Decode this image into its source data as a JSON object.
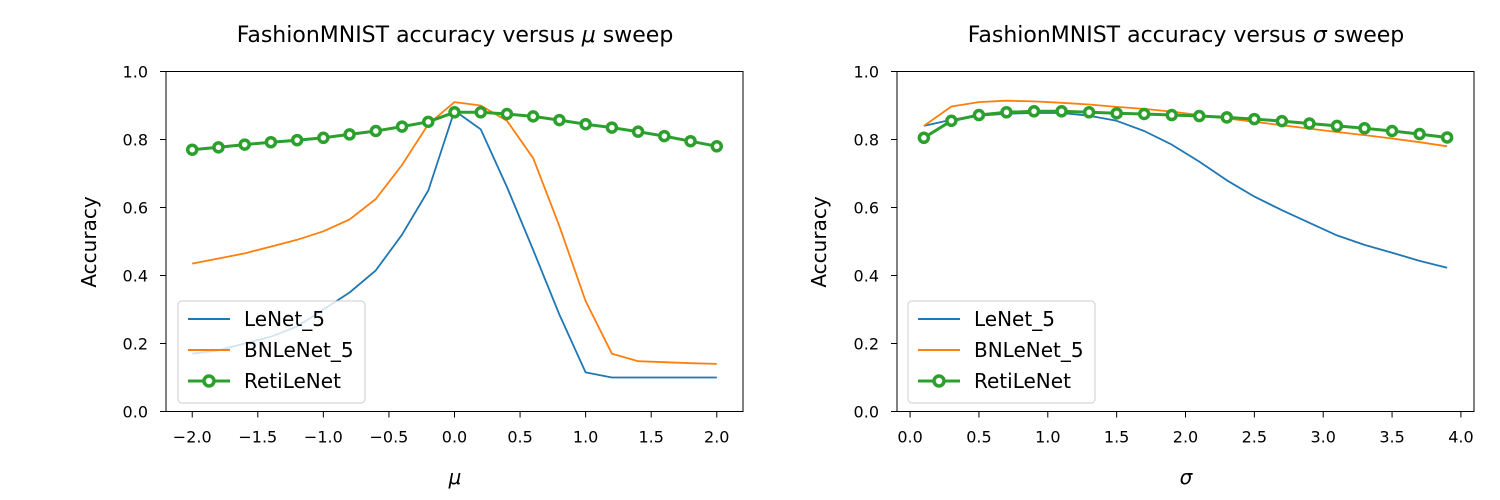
{
  "chart_data": [
    {
      "type": "line",
      "title_prefix": "FashionMNIST accuracy versus ",
      "title_symbol": "μ",
      "title_suffix": " sweep",
      "xlabel": "μ",
      "ylabel": "Accuracy",
      "xlim": [
        -2.2,
        2.2
      ],
      "ylim": [
        0.0,
        1.0
      ],
      "xticks": [
        -2.0,
        -1.5,
        -1.0,
        -0.5,
        0.0,
        0.5,
        1.0,
        1.5,
        2.0
      ],
      "xtick_labels": [
        "−2.0",
        "−1.5",
        "−1.0",
        "−0.5",
        "0.0",
        "0.5",
        "1.0",
        "1.5",
        "2.0"
      ],
      "yticks": [
        0.0,
        0.2,
        0.4,
        0.6,
        0.8,
        1.0
      ],
      "ytick_labels": [
        "0.0",
        "0.2",
        "0.4",
        "0.6",
        "0.8",
        "1.0"
      ],
      "grid": false,
      "legend_position": "lower-left",
      "x": [
        -2.0,
        -1.8,
        -1.6,
        -1.4,
        -1.2,
        -1.0,
        -0.8,
        -0.6,
        -0.4,
        -0.2,
        0.0,
        0.2,
        0.4,
        0.6,
        0.8,
        1.0,
        1.2,
        1.4,
        1.6,
        1.8,
        2.0
      ],
      "series": [
        {
          "name": "LeNet_5",
          "color": "#1f77b4",
          "marker": false,
          "values": [
            0.17,
            0.18,
            0.2,
            0.22,
            0.25,
            0.3,
            0.35,
            0.415,
            0.52,
            0.65,
            0.885,
            0.83,
            0.66,
            0.475,
            0.285,
            0.115,
            0.1,
            0.1,
            0.1,
            0.1,
            0.1
          ]
        },
        {
          "name": "BNLeNet_5",
          "color": "#ff7f0e",
          "marker": false,
          "values": [
            0.435,
            0.45,
            0.465,
            0.485,
            0.505,
            0.53,
            0.565,
            0.625,
            0.725,
            0.845,
            0.91,
            0.9,
            0.855,
            0.745,
            0.545,
            0.325,
            0.17,
            0.148,
            0.145,
            0.142,
            0.14
          ]
        },
        {
          "name": "RetiLeNet",
          "color": "#2ca02c",
          "marker": true,
          "values": [
            0.77,
            0.777,
            0.785,
            0.792,
            0.798,
            0.805,
            0.815,
            0.825,
            0.838,
            0.852,
            0.88,
            0.88,
            0.875,
            0.868,
            0.857,
            0.845,
            0.835,
            0.823,
            0.81,
            0.795,
            0.78
          ]
        }
      ]
    },
    {
      "type": "line",
      "title_prefix": "FashionMNIST accuracy versus ",
      "title_symbol": "σ",
      "title_suffix": " sweep",
      "xlabel": "σ",
      "ylabel": "Accuracy",
      "xlim": [
        -0.095,
        4.095
      ],
      "ylim": [
        0.0,
        1.0
      ],
      "xticks": [
        0.0,
        0.5,
        1.0,
        1.5,
        2.0,
        2.5,
        3.0,
        3.5,
        4.0
      ],
      "xtick_labels": [
        "0.0",
        "0.5",
        "1.0",
        "1.5",
        "2.0",
        "2.5",
        "3.0",
        "3.5",
        "4.0"
      ],
      "yticks": [
        0.0,
        0.2,
        0.4,
        0.6,
        0.8,
        1.0
      ],
      "ytick_labels": [
        "0.0",
        "0.2",
        "0.4",
        "0.6",
        "0.8",
        "1.0"
      ],
      "grid": false,
      "legend_position": "lower-left",
      "x": [
        0.1,
        0.3,
        0.5,
        0.7,
        0.9,
        1.1,
        1.3,
        1.5,
        1.7,
        1.9,
        2.1,
        2.3,
        2.5,
        2.7,
        2.9,
        3.1,
        3.3,
        3.5,
        3.7,
        3.9
      ],
      "series": [
        {
          "name": "LeNet_5",
          "color": "#1f77b4",
          "marker": false,
          "values": [
            0.84,
            0.858,
            0.87,
            0.876,
            0.878,
            0.878,
            0.87,
            0.855,
            0.825,
            0.785,
            0.735,
            0.68,
            0.632,
            0.592,
            0.555,
            0.518,
            0.49,
            0.467,
            0.443,
            0.423
          ]
        },
        {
          "name": "BNLeNet_5",
          "color": "#ff7f0e",
          "marker": false,
          "values": [
            0.84,
            0.897,
            0.91,
            0.914,
            0.912,
            0.908,
            0.903,
            0.896,
            0.89,
            0.882,
            0.872,
            0.862,
            0.852,
            0.842,
            0.832,
            0.822,
            0.813,
            0.803,
            0.792,
            0.78
          ]
        },
        {
          "name": "RetiLeNet",
          "color": "#2ca02c",
          "marker": true,
          "values": [
            0.805,
            0.855,
            0.872,
            0.88,
            0.883,
            0.883,
            0.88,
            0.877,
            0.875,
            0.872,
            0.869,
            0.865,
            0.86,
            0.854,
            0.847,
            0.84,
            0.833,
            0.825,
            0.816,
            0.806
          ]
        }
      ]
    }
  ]
}
